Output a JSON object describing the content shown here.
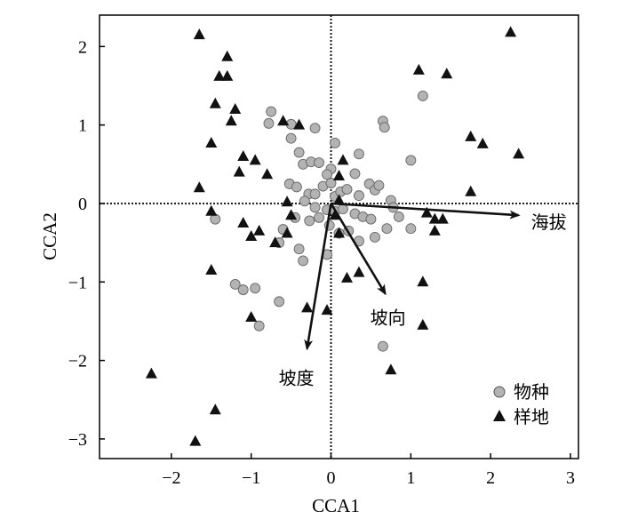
{
  "chart_data": {
    "type": "scatter",
    "xlabel": "CCA1",
    "ylabel": "CCA2",
    "xlim": [
      -2.9,
      3.1
    ],
    "ylim": [
      -3.25,
      2.4
    ],
    "x_ticks": [
      -2,
      -1,
      0,
      1,
      2,
      3
    ],
    "y_ticks": [
      -3,
      -2,
      -1,
      0,
      1,
      2
    ],
    "reference_lines": {
      "x": 0,
      "y": 0,
      "style": "dotted"
    },
    "legend": {
      "position": "bottom-right"
    },
    "series": [
      {
        "name": "物种",
        "marker": "circle",
        "color": "#b3b3b3",
        "points": [
          [
            1.15,
            1.37
          ],
          [
            0.65,
            1.05
          ],
          [
            0.67,
            0.97
          ],
          [
            -0.75,
            1.17
          ],
          [
            -0.78,
            1.02
          ],
          [
            -0.5,
            1.01
          ],
          [
            -0.2,
            0.96
          ],
          [
            0.05,
            0.77
          ],
          [
            -0.5,
            0.83
          ],
          [
            -0.4,
            0.65
          ],
          [
            -0.35,
            0.5
          ],
          [
            -0.25,
            0.53
          ],
          [
            -0.15,
            0.52
          ],
          [
            0.35,
            0.63
          ],
          [
            0.3,
            0.38
          ],
          [
            1.0,
            0.55
          ],
          [
            0.0,
            0.44
          ],
          [
            -0.05,
            0.37
          ],
          [
            -0.52,
            0.25
          ],
          [
            -0.43,
            0.21
          ],
          [
            -0.28,
            0.12
          ],
          [
            -0.2,
            0.12
          ],
          [
            -0.1,
            0.22
          ],
          [
            0.0,
            0.26
          ],
          [
            0.05,
            0.09
          ],
          [
            0.12,
            0.15
          ],
          [
            0.2,
            0.18
          ],
          [
            0.35,
            0.1
          ],
          [
            0.48,
            0.25
          ],
          [
            0.55,
            0.17
          ],
          [
            0.6,
            0.23
          ],
          [
            0.75,
            0.04
          ],
          [
            -0.33,
            0.03
          ],
          [
            -0.2,
            -0.05
          ],
          [
            -0.05,
            -0.08
          ],
          [
            0.05,
            -0.1
          ],
          [
            0.15,
            -0.07
          ],
          [
            0.3,
            -0.13
          ],
          [
            0.4,
            -0.17
          ],
          [
            0.5,
            -0.2
          ],
          [
            0.85,
            -0.17
          ],
          [
            0.78,
            -0.05
          ],
          [
            1.0,
            -0.32
          ],
          [
            0.7,
            -0.32
          ],
          [
            -0.45,
            -0.18
          ],
          [
            -0.27,
            -0.22
          ],
          [
            -0.15,
            -0.18
          ],
          [
            -0.02,
            -0.28
          ],
          [
            0.1,
            -0.38
          ],
          [
            0.22,
            -0.35
          ],
          [
            0.35,
            -0.48
          ],
          [
            0.55,
            -0.43
          ],
          [
            -0.6,
            -0.33
          ],
          [
            -1.45,
            -0.2
          ],
          [
            -0.65,
            -0.5
          ],
          [
            -0.4,
            -0.58
          ],
          [
            -0.05,
            -0.65
          ],
          [
            -0.35,
            -0.73
          ],
          [
            -1.2,
            -1.03
          ],
          [
            -1.1,
            -1.1
          ],
          [
            -0.95,
            -1.08
          ],
          [
            -0.65,
            -1.25
          ],
          [
            -0.9,
            -1.56
          ],
          [
            0.65,
            -1.82
          ]
        ]
      },
      {
        "name": "样地",
        "marker": "triangle",
        "color": "#111111",
        "points": [
          [
            -1.65,
            2.15
          ],
          [
            -1.3,
            1.87
          ],
          [
            -1.4,
            1.62
          ],
          [
            -1.3,
            1.62
          ],
          [
            -1.45,
            1.27
          ],
          [
            -1.2,
            1.2
          ],
          [
            -1.25,
            1.05
          ],
          [
            -0.6,
            1.05
          ],
          [
            -0.4,
            1.0
          ],
          [
            -1.5,
            0.77
          ],
          [
            -1.1,
            0.6
          ],
          [
            -0.95,
            0.55
          ],
          [
            -1.15,
            0.4
          ],
          [
            -0.8,
            0.37
          ],
          [
            -1.65,
            0.2
          ],
          [
            1.1,
            1.7
          ],
          [
            1.45,
            1.65
          ],
          [
            2.25,
            2.18
          ],
          [
            1.75,
            0.85
          ],
          [
            1.9,
            0.76
          ],
          [
            2.35,
            0.63
          ],
          [
            0.15,
            0.55
          ],
          [
            0.1,
            0.35
          ],
          [
            -0.55,
            0.02
          ],
          [
            0.1,
            0.04
          ],
          [
            1.75,
            0.15
          ],
          [
            -1.5,
            -0.1
          ],
          [
            -1.1,
            -0.25
          ],
          [
            -1.0,
            -0.42
          ],
          [
            -0.9,
            -0.35
          ],
          [
            -0.7,
            -0.5
          ],
          [
            -0.55,
            -0.38
          ],
          [
            -0.5,
            -0.15
          ],
          [
            0.05,
            -0.15
          ],
          [
            0.1,
            -0.38
          ],
          [
            1.2,
            -0.12
          ],
          [
            1.3,
            -0.2
          ],
          [
            1.4,
            -0.2
          ],
          [
            1.3,
            -0.35
          ],
          [
            -1.5,
            -0.85
          ],
          [
            -0.3,
            -1.33
          ],
          [
            -0.05,
            -1.36
          ],
          [
            0.2,
            -0.95
          ],
          [
            0.35,
            -0.88
          ],
          [
            -1.0,
            -1.45
          ],
          [
            1.15,
            -1.55
          ],
          [
            0.75,
            -2.12
          ],
          [
            1.15,
            -1.0
          ],
          [
            -2.25,
            -2.17
          ],
          [
            -1.45,
            -2.63
          ],
          [
            -1.7,
            -3.03
          ]
        ]
      }
    ],
    "vectors": [
      {
        "label": "海拔",
        "x": 2.35,
        "y": -0.15
      },
      {
        "label": "坡向",
        "x": 0.68,
        "y": -1.15
      },
      {
        "label": "坡度",
        "x": -0.3,
        "y": -1.85
      }
    ]
  }
}
